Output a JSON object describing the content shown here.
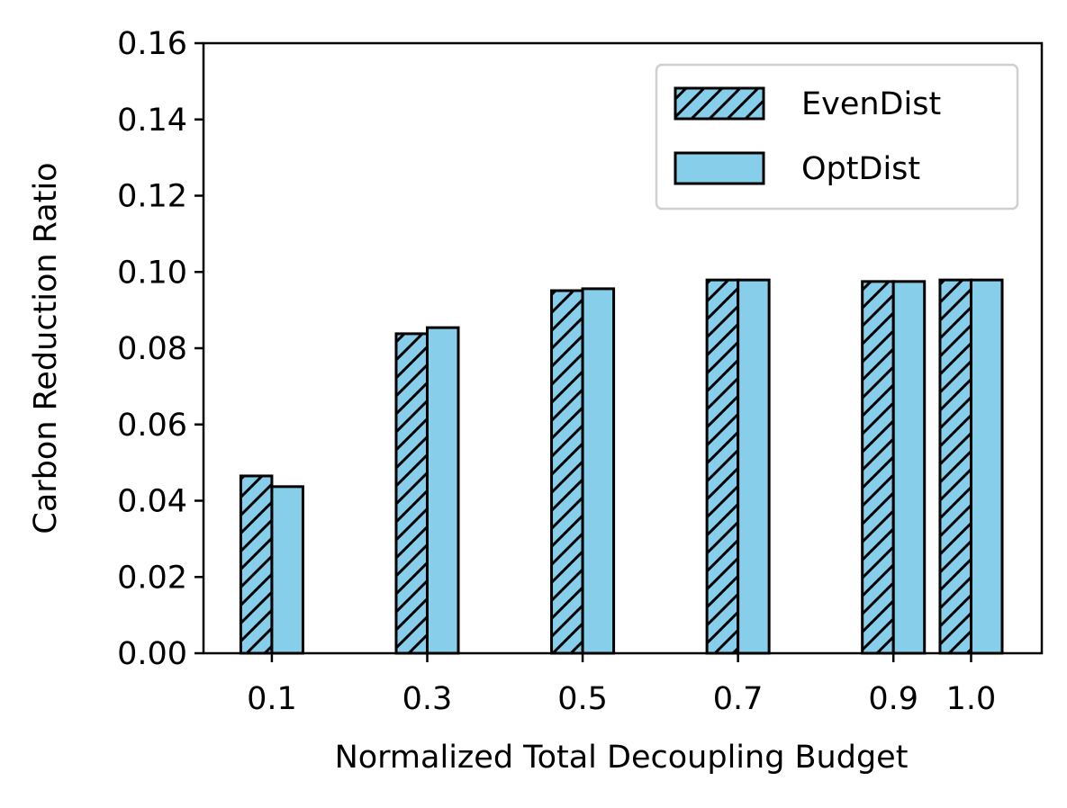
{
  "chart_data": {
    "type": "bar",
    "xlabel": "Normalized Total Decoupling Budget",
    "ylabel": "Carbon Reduction Ratio",
    "x": [
      0.1,
      0.3,
      0.5,
      0.7,
      0.9,
      1.0
    ],
    "series": [
      {
        "name": "EvenDist",
        "color": "#87ceeb",
        "hatch": "//",
        "values": [
          0.0465,
          0.0838,
          0.0951,
          0.0979,
          0.0975,
          0.0979
        ]
      },
      {
        "name": "OptDist",
        "color": "#87ceeb",
        "values": [
          0.0437,
          0.0854,
          0.0956,
          0.0979,
          0.0975,
          0.0979
        ]
      }
    ],
    "xlim": [
      0.012,
      1.091
    ],
    "xticks": [
      0.1,
      0.3,
      0.5,
      0.7,
      0.9,
      {
        "value": 1.0,
        "label": "1.0"
      }
    ],
    "ylim": [
      0,
      0.16
    ],
    "yticks": [
      {
        "value": 0,
        "label": "0.00"
      },
      {
        "value": 0.02,
        "label": "0.02"
      },
      {
        "value": 0.04,
        "label": "0.04"
      },
      {
        "value": 0.06,
        "label": "0.06"
      },
      {
        "value": 0.08,
        "label": "0.08"
      },
      {
        "value": 0.1,
        "label": "0.10"
      },
      {
        "value": 0.12,
        "label": "0.12"
      },
      {
        "value": 0.14,
        "label": "0.14"
      },
      {
        "value": 0.16,
        "label": "0.16"
      }
    ],
    "legend": "upper right"
  }
}
